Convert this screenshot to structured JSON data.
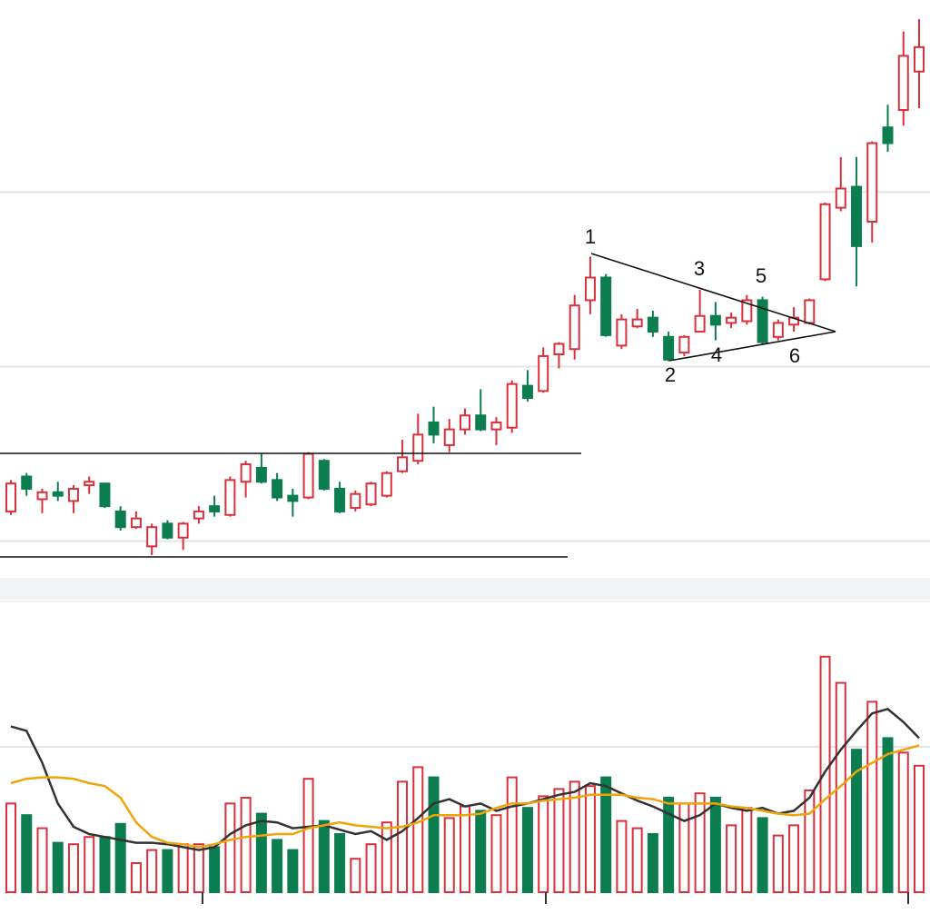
{
  "chart_data": [
    {
      "type": "candlestick",
      "open": [
        3.7,
        5.7,
        4.4,
        4.8,
        4.3,
        5.2,
        5.3,
        3.7,
        2.8,
        1.7,
        3.0,
        2.2,
        3.3,
        4.0,
        3.5,
        5.4,
        6.2,
        5.5,
        4.6,
        4.5,
        6.6,
        5.0,
        3.9,
        4.1,
        4.6,
        6.0,
        6.6,
        8.8,
        7.5,
        8.4,
        9.2,
        8.4,
        8.5,
        10.9,
        10.6,
        12.7,
        13.0,
        15.8,
        17.1,
        13.2,
        14.3,
        14.8,
        13.7,
        12.8,
        14.0,
        14.9,
        14.5,
        14.6,
        15.8,
        13.7,
        14.4,
        14.5,
        17.0,
        21.1,
        22.3,
        20.3,
        25.7,
        26.7,
        28.9
      ],
      "high": [
        5.5,
        5.9,
        5.0,
        5.4,
        5.2,
        5.7,
        5.3,
        4.0,
        3.7,
        3.0,
        3.2,
        3.1,
        4.0,
        4.6,
        5.7,
        6.6,
        7.0,
        5.9,
        5.0,
        7.1,
        6.7,
        5.4,
        4.9,
        5.4,
        6.0,
        7.8,
        9.3,
        9.7,
        9.0,
        9.6,
        10.7,
        9.1,
        11.2,
        11.8,
        13.1,
        13.4,
        16.1,
        18.3,
        17.3,
        15.0,
        15.3,
        15.2,
        14.0,
        13.8,
        16.4,
        15.7,
        15.1,
        16.1,
        16.0,
        14.7,
        15.4,
        15.9,
        21.4,
        24.0,
        24.0,
        24.9,
        27.0,
        31.2,
        31.9
      ],
      "low": [
        3.5,
        4.6,
        3.6,
        4.3,
        3.6,
        4.7,
        3.9,
        2.6,
        2.7,
        1.2,
        2.1,
        1.5,
        3.0,
        3.4,
        3.4,
        4.5,
        5.3,
        4.3,
        3.4,
        4.4,
        4.9,
        3.6,
        3.7,
        4.0,
        4.5,
        5.9,
        6.4,
        7.6,
        7.1,
        8.1,
        8.3,
        7.5,
        8.2,
        10.0,
        10.5,
        11.9,
        12.4,
        15.0,
        13.7,
        13.0,
        14.2,
        13.7,
        12.3,
        12.6,
        14.0,
        13.5,
        14.2,
        14.4,
        13.3,
        13.5,
        14.0,
        14.4,
        16.9,
        20.9,
        16.6,
        19.1,
        24.3,
        25.8,
        26.8
      ],
      "close": [
        5.3,
        5.0,
        4.8,
        4.6,
        5.0,
        5.4,
        4.0,
        2.8,
        3.3,
        2.8,
        2.2,
        3.0,
        3.7,
        3.7,
        5.5,
        6.4,
        5.4,
        4.5,
        4.3,
        7.0,
        5.0,
        3.7,
        4.7,
        5.3,
        5.9,
        6.8,
        8.1,
        8.1,
        8.4,
        9.2,
        8.4,
        8.8,
        11.0,
        10.2,
        12.6,
        13.3,
        15.5,
        17.1,
        13.8,
        14.7,
        14.7,
        14.0,
        12.4,
        13.7,
        14.9,
        14.4,
        14.8,
        15.8,
        13.4,
        14.5,
        14.8,
        15.8,
        21.3,
        22.2,
        18.9,
        24.8,
        24.8,
        29.8,
        30.3
      ],
      "up_color": "#d9303b",
      "down_color": "#0b7d4f",
      "ylim": [
        0,
        33
      ],
      "yticks": [
        2,
        12,
        22
      ],
      "grid": true,
      "annotations": [
        "1",
        "2",
        "3",
        "4",
        "5",
        "6"
      ]
    },
    {
      "type": "bar",
      "values": [
        61,
        53,
        44,
        34,
        33,
        38,
        38,
        47,
        20,
        29,
        29,
        33,
        33,
        31,
        61,
        65,
        54,
        36,
        29,
        78,
        49,
        40,
        23,
        33,
        48,
        76,
        86,
        79,
        51,
        59,
        56,
        53,
        79,
        58,
        66,
        71,
        76,
        73,
        79,
        49,
        44,
        40,
        65,
        61,
        68,
        65,
        46,
        58,
        51,
        39,
        46,
        70,
        162,
        144,
        98,
        131,
        106,
        96,
        87
      ],
      "series": [
        {
          "color": "#333333",
          "values": [
            114,
            111,
            89,
            61,
            45,
            40,
            38,
            36,
            34,
            34,
            33,
            31,
            29,
            31,
            40,
            46,
            49,
            48,
            44,
            45,
            46,
            43,
            40,
            42,
            36,
            42,
            51,
            61,
            64,
            59,
            61,
            56,
            59,
            61,
            64,
            67,
            69,
            75,
            73,
            68,
            63,
            59,
            54,
            49,
            53,
            61,
            58,
            56,
            58,
            54,
            56,
            65,
            83,
            98,
            111,
            123,
            126,
            117,
            106
          ]
        },
        {
          "color": "#f0a30a",
          "values": [
            75,
            78,
            79,
            79,
            78,
            75,
            73,
            65,
            48,
            38,
            34,
            33,
            31,
            33,
            36,
            38,
            39,
            40,
            40,
            44,
            46,
            48,
            46,
            45,
            44,
            45,
            48,
            53,
            53,
            53,
            54,
            58,
            61,
            61,
            63,
            64,
            65,
            67,
            67,
            67,
            65,
            64,
            61,
            61,
            61,
            61,
            59,
            58,
            56,
            54,
            53,
            54,
            64,
            73,
            83,
            89,
            95,
            98,
            101
          ]
        }
      ],
      "ylim": [
        0,
        200
      ],
      "yticks": [
        100
      ],
      "grid": true
    }
  ]
}
